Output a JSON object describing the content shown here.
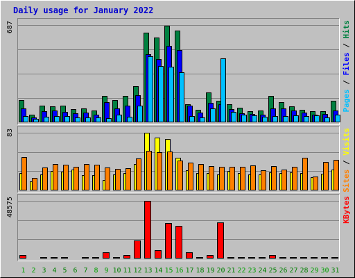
{
  "chart_data": {
    "type": "bar",
    "title": "Daily usage for January 2022",
    "days": [
      1,
      2,
      3,
      4,
      5,
      6,
      7,
      8,
      9,
      10,
      11,
      12,
      13,
      14,
      15,
      16,
      17,
      18,
      19,
      20,
      21,
      22,
      23,
      24,
      25,
      26,
      27,
      28,
      29,
      30,
      31
    ],
    "weekend_days": [
      1,
      2,
      8,
      9,
      15,
      16,
      22,
      23,
      29,
      30
    ],
    "colors": {
      "hits": "#008040",
      "files": "#0000ff",
      "pages": "#00c0ff",
      "visits": "#ffff00",
      "sites": "#ff8000",
      "kbytes": "#ff0000",
      "weekday": "#008000",
      "weekend": "#00a000",
      "title": "#0000d0"
    },
    "panels": [
      {
        "id": "hits",
        "max_label": "687",
        "ymax": 687,
        "right_label": [
          {
            "text": "Pages",
            "color": "#00c0ff"
          },
          {
            "text": " / ",
            "color": "#000000"
          },
          {
            "text": "Files",
            "color": "#0000ff"
          },
          {
            "text": " / ",
            "color": "#000000"
          },
          {
            "text": "Hits",
            "color": "#008040"
          }
        ],
        "series": [
          {
            "key": "hits",
            "values": [
              155,
              55,
              120,
              115,
              120,
              95,
              100,
              85,
              185,
              155,
              185,
              255,
              635,
              597,
              682,
              647,
              130,
              90,
              210,
              150,
              130,
              104,
              78,
              85,
              185,
              140,
              114,
              90,
              80,
              80,
              150
            ]
          },
          {
            "key": "files",
            "values": [
              100,
              35,
              80,
              85,
              75,
              65,
              70,
              55,
              140,
              100,
              120,
              190,
              480,
              445,
              540,
              510,
              117,
              70,
              135,
              128,
              95,
              64,
              58,
              54,
              100,
              100,
              85,
              68,
              52,
              58,
              84
            ]
          },
          {
            "key": "pages",
            "values": [
              45,
              25,
              40,
              45,
              45,
              35,
              35,
              35,
              30,
              55,
              40,
              120,
              468,
              397,
              395,
              355,
              45,
              35,
              100,
              450,
              75,
              55,
              48,
              38,
              45,
              45,
              50,
              42,
              48,
              36,
              55
            ]
          }
        ]
      },
      {
        "id": "visits",
        "max_label": "83",
        "ymax": 83,
        "right_label": [
          {
            "text": "Sites",
            "color": "#ff8000"
          },
          {
            "text": " / ",
            "color": "#000000"
          },
          {
            "text": "Visits",
            "color": "#ffff00"
          }
        ],
        "series": [
          {
            "key": "visits",
            "values": [
              25,
              13,
              23,
              28,
              27,
              30,
              22,
              22,
              15,
              23,
              25,
              38,
              83,
              76,
              74,
              47,
              29,
              25,
              25,
              23,
              28,
              25,
              23,
              23,
              26,
              25,
              26,
              25,
              19,
              24,
              30
            ]
          },
          {
            "key": "sites",
            "values": [
              48,
              18,
              33,
              38,
              37,
              34,
              38,
              37,
              33,
              31,
              32,
              46,
              57,
              55,
              56,
              43,
              40,
              38,
              35,
              34,
              34,
              34,
              36,
              29,
              35,
              30,
              34,
              47,
              20,
              41,
              44
            ]
          }
        ]
      },
      {
        "id": "kbytes",
        "max_label": "48575",
        "ymax": 48575,
        "right_label": [
          {
            "text": "KBytes",
            "color": "#ff0000"
          }
        ],
        "series": [
          {
            "key": "kbytes",
            "values": [
              3000,
              800,
              1000,
              1000,
              1000,
              800,
              1000,
              1000,
              5300,
              1000,
              3000,
              15200,
              48575,
              7300,
              29600,
              27600,
              5200,
              1000,
              3000,
              30600,
              1300,
              1200,
              1200,
              1200,
              3000,
              1300,
              1200,
              1200,
              1200,
              1200,
              1200
            ]
          }
        ]
      }
    ]
  }
}
